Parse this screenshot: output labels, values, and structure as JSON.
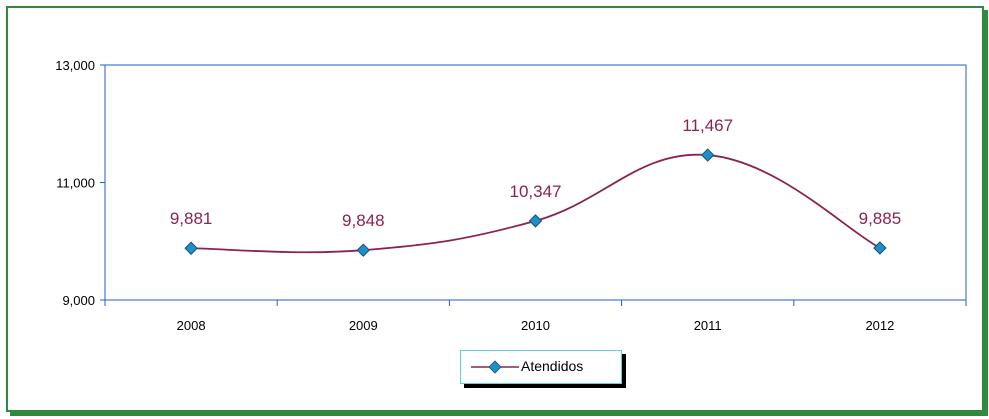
{
  "chart_data": {
    "type": "line",
    "categories": [
      "2008",
      "2009",
      "2010",
      "2011",
      "2012"
    ],
    "series": [
      {
        "name": "Atendidos",
        "values": [
          9881,
          9848,
          10347,
          11467,
          9885
        ],
        "labels": [
          "9,881",
          "9,848",
          "10,347",
          "11,467",
          "9,885"
        ],
        "line_color": "#8b2252",
        "marker_color": "#1e90c8"
      }
    ],
    "yticks": [
      {
        "value": 9000,
        "label": "9,000"
      },
      {
        "value": 11000,
        "label": "11,000"
      },
      {
        "value": 13000,
        "label": "13,000"
      }
    ],
    "ylim": [
      9000,
      13000
    ],
    "title": "",
    "xlabel": "",
    "ylabel": "",
    "grid": false,
    "legend": "bottom",
    "smooth": true
  },
  "colors": {
    "frame_border": "#2e8b3e",
    "plot_border": "#1e5fc8",
    "legend_border": "#5fd4d0"
  }
}
